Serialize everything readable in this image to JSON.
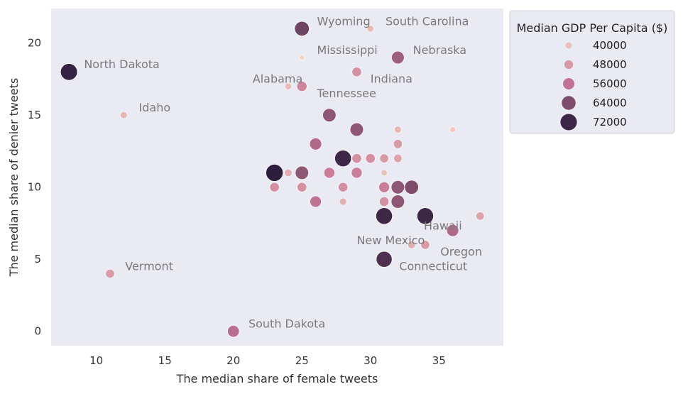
{
  "chart_data": {
    "type": "scatter",
    "title": "",
    "xlabel": "The median share of female tweets",
    "ylabel": "The median share of denier tweets",
    "xlim": [
      6.7,
      39.7
    ],
    "ylim": [
      -1.0,
      22.4
    ],
    "xticks": [
      10,
      15,
      20,
      25,
      30,
      35
    ],
    "yticks": [
      0,
      5,
      10,
      15,
      20
    ],
    "grid": false,
    "legend": {
      "title": "Median GDP Per Capita ($)",
      "placement": "upper right, outside plot",
      "levels": [
        {
          "label": "40000",
          "value": 40000
        },
        {
          "label": "48000",
          "value": 48000
        },
        {
          "label": "56000",
          "value": 56000
        },
        {
          "label": "64000",
          "value": 64000
        },
        {
          "label": "72000",
          "value": 72000
        }
      ]
    },
    "colors": {
      "background": "#eaeaf2",
      "low": "#f2d3c4",
      "high": "#2d1e3e",
      "annotation": "#7a7a7a"
    },
    "points": [
      {
        "x": 8,
        "y": 18,
        "gdp": 73000
      },
      {
        "x": 11,
        "y": 4,
        "gdp": 48000
      },
      {
        "x": 12,
        "y": 15,
        "gdp": 42000
      },
      {
        "x": 20,
        "y": 0,
        "gdp": 57000
      },
      {
        "x": 23,
        "y": 10,
        "gdp": 50000
      },
      {
        "x": 23,
        "y": 11,
        "gdp": 74000
      },
      {
        "x": 24,
        "y": 11,
        "gdp": 44000
      },
      {
        "x": 24,
        "y": 17,
        "gdp": 41000
      },
      {
        "x": 25,
        "y": 21,
        "gdp": 66000
      },
      {
        "x": 25,
        "y": 19,
        "gdp": 36000
      },
      {
        "x": 25,
        "y": 17,
        "gdp": 52000
      },
      {
        "x": 25,
        "y": 11,
        "gdp": 62000
      },
      {
        "x": 25,
        "y": 10,
        "gdp": 50000
      },
      {
        "x": 26,
        "y": 13,
        "gdp": 58000
      },
      {
        "x": 26,
        "y": 9,
        "gdp": 56000
      },
      {
        "x": 27,
        "y": 15,
        "gdp": 62000
      },
      {
        "x": 27,
        "y": 11,
        "gdp": 54000
      },
      {
        "x": 28,
        "y": 12,
        "gdp": 72000
      },
      {
        "x": 28,
        "y": 10,
        "gdp": 50000
      },
      {
        "x": 28,
        "y": 9,
        "gdp": 43000
      },
      {
        "x": 29,
        "y": 18,
        "gdp": 50000
      },
      {
        "x": 29,
        "y": 14,
        "gdp": 62000
      },
      {
        "x": 29,
        "y": 12,
        "gdp": 50000
      },
      {
        "x": 29,
        "y": 11,
        "gdp": 54000
      },
      {
        "x": 30,
        "y": 21,
        "gdp": 41000
      },
      {
        "x": 30,
        "y": 12,
        "gdp": 50000
      },
      {
        "x": 31,
        "y": 12,
        "gdp": 48000
      },
      {
        "x": 31,
        "y": 11,
        "gdp": 40000
      },
      {
        "x": 31,
        "y": 10,
        "gdp": 54000
      },
      {
        "x": 31,
        "y": 9,
        "gdp": 50000
      },
      {
        "x": 31,
        "y": 8,
        "gdp": 72000
      },
      {
        "x": 31,
        "y": 5,
        "gdp": 70000
      },
      {
        "x": 32,
        "y": 19,
        "gdp": 60000
      },
      {
        "x": 32,
        "y": 14,
        "gdp": 42000
      },
      {
        "x": 32,
        "y": 13,
        "gdp": 48000
      },
      {
        "x": 32,
        "y": 12,
        "gdp": 46000
      },
      {
        "x": 32,
        "y": 10,
        "gdp": 62000
      },
      {
        "x": 32,
        "y": 9,
        "gdp": 62000
      },
      {
        "x": 33,
        "y": 10,
        "gdp": 64000
      },
      {
        "x": 33,
        "y": 6,
        "gdp": 44000
      },
      {
        "x": 34,
        "y": 8,
        "gdp": 72000
      },
      {
        "x": 34,
        "y": 6,
        "gdp": 48000
      },
      {
        "x": 36,
        "y": 14,
        "gdp": 38000
      },
      {
        "x": 36,
        "y": 7,
        "gdp": 58000
      },
      {
        "x": 38,
        "y": 8,
        "gdp": 46000
      }
    ],
    "annotations": [
      {
        "text": "North Dakota",
        "x": 9.1,
        "y": 18.5
      },
      {
        "text": "Idaho",
        "x": 13.1,
        "y": 15.5
      },
      {
        "text": "Vermont",
        "x": 12.1,
        "y": 4.5
      },
      {
        "text": "South Dakota",
        "x": 21.1,
        "y": 0.5
      },
      {
        "text": "Wyoming",
        "x": 26.1,
        "y": 21.5
      },
      {
        "text": "South Carolina",
        "x": 31.1,
        "y": 21.5
      },
      {
        "text": "Mississippi",
        "x": 26.1,
        "y": 19.5
      },
      {
        "text": "Nebraska",
        "x": 33.1,
        "y": 19.5
      },
      {
        "text": "Alabama",
        "x": 21.4,
        "y": 17.5
      },
      {
        "text": "Indiana",
        "x": 30.0,
        "y": 17.5
      },
      {
        "text": "Tennessee",
        "x": 26.1,
        "y": 16.5
      },
      {
        "text": "Hawaii",
        "x": 33.9,
        "y": 7.3
      },
      {
        "text": "New Mexico",
        "x": 29.0,
        "y": 6.3
      },
      {
        "text": "Oregon",
        "x": 35.1,
        "y": 5.5
      },
      {
        "text": "Connecticut",
        "x": 32.1,
        "y": 4.5
      }
    ]
  }
}
